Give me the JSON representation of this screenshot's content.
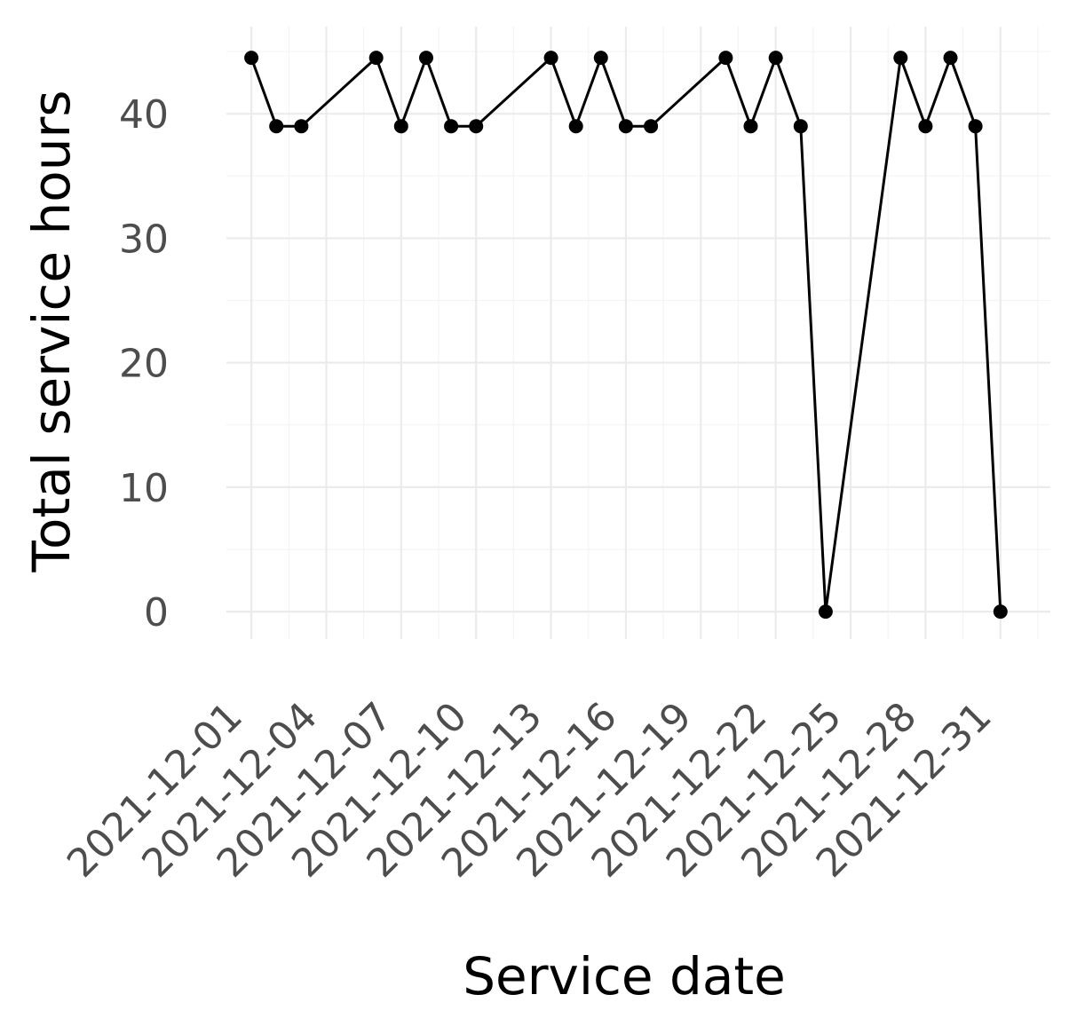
{
  "chart_data": {
    "type": "line",
    "xlabel": "Service date",
    "ylabel": "Total service hours",
    "x_ticks": [
      "2021-12-01",
      "2021-12-04",
      "2021-12-07",
      "2021-12-10",
      "2021-12-13",
      "2021-12-16",
      "2021-12-19",
      "2021-12-22",
      "2021-12-25",
      "2021-12-28",
      "2021-12-31"
    ],
    "y_ticks": [
      0,
      10,
      20,
      30,
      40
    ],
    "xlim": [
      "2021-11-30",
      "2022-01-02"
    ],
    "ylim": [
      -2.2,
      47
    ],
    "grid": true,
    "line_color": "#000000",
    "series": [
      {
        "x": [
          "2021-12-01",
          "2021-12-02",
          "2021-12-03",
          "2021-12-06",
          "2021-12-07",
          "2021-12-08",
          "2021-12-09",
          "2021-12-10",
          "2021-12-13",
          "2021-12-14",
          "2021-12-15",
          "2021-12-16",
          "2021-12-17",
          "2021-12-20",
          "2021-12-21",
          "2021-12-22",
          "2021-12-23",
          "2021-12-24",
          "2021-12-27",
          "2021-12-28",
          "2021-12-29",
          "2021-12-30",
          "2021-12-31"
        ],
        "y": [
          44.5,
          39,
          39,
          44.5,
          39,
          44.5,
          39,
          39,
          44.5,
          39,
          44.5,
          39,
          39,
          44.5,
          39,
          44.5,
          39,
          0,
          44.5,
          39,
          44.5,
          39,
          0
        ]
      }
    ]
  }
}
